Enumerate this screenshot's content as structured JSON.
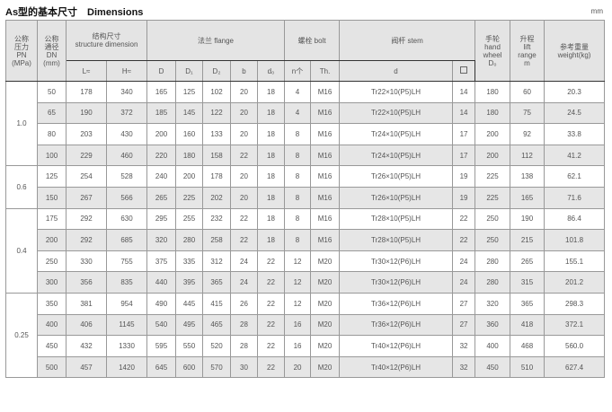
{
  "title": "As型的基本尺寸　Dimensions",
  "unit": "mm",
  "headers": {
    "pn": [
      "公称",
      "压力",
      "PN",
      "(MPa)"
    ],
    "dn": [
      "公称",
      "通径",
      "DN",
      "(mm)"
    ],
    "structure": [
      "结构尺寸",
      "structure dimension"
    ],
    "flange": "法兰 flange",
    "bolt": "螺栓 bolt",
    "stem": "阀杆 stem",
    "handwheel": [
      "手轮",
      "hand",
      "wheel",
      "D₀"
    ],
    "lift": [
      "升程",
      "lift",
      "range",
      "m"
    ],
    "weight": [
      "参考重量",
      "weight(kg)"
    ],
    "sub": {
      "L": "L≈",
      "H": "H≈",
      "D": "D",
      "D1": "D₁",
      "D2": "D₂",
      "b": "b",
      "d0": "d₀",
      "n": "n个",
      "Th": "Th.",
      "d": "d",
      "square": "□"
    }
  },
  "groups": [
    {
      "pn": "1.0",
      "rows": [
        [
          "50",
          "178",
          "340",
          "165",
          "125",
          "102",
          "20",
          "18",
          "4",
          "M16",
          "Tr22×10(P5)LH",
          "14",
          "180",
          "60",
          "20.3"
        ],
        [
          "65",
          "190",
          "372",
          "185",
          "145",
          "122",
          "20",
          "18",
          "4",
          "M16",
          "Tr22×10(P5)LH",
          "14",
          "180",
          "75",
          "24.5"
        ],
        [
          "80",
          "203",
          "430",
          "200",
          "160",
          "133",
          "20",
          "18",
          "8",
          "M16",
          "Tr24×10(P5)LH",
          "17",
          "200",
          "92",
          "33.8"
        ],
        [
          "100",
          "229",
          "460",
          "220",
          "180",
          "158",
          "22",
          "18",
          "8",
          "M16",
          "Tr24×10(P5)LH",
          "17",
          "200",
          "112",
          "41.2"
        ]
      ]
    },
    {
      "pn": "0.6",
      "rows": [
        [
          "125",
          "254",
          "528",
          "240",
          "200",
          "178",
          "20",
          "18",
          "8",
          "M16",
          "Tr26×10(P5)LH",
          "19",
          "225",
          "138",
          "62.1"
        ],
        [
          "150",
          "267",
          "566",
          "265",
          "225",
          "202",
          "20",
          "18",
          "8",
          "M16",
          "Tr26×10(P5)LH",
          "19",
          "225",
          "165",
          "71.6"
        ]
      ]
    },
    {
      "pn": "0.4",
      "rows": [
        [
          "175",
          "292",
          "630",
          "295",
          "255",
          "232",
          "22",
          "18",
          "8",
          "M16",
          "Tr28×10(P5)LH",
          "22",
          "250",
          "190",
          "86.4"
        ],
        [
          "200",
          "292",
          "685",
          "320",
          "280",
          "258",
          "22",
          "18",
          "8",
          "M16",
          "Tr28×10(P5)LH",
          "22",
          "250",
          "215",
          "101.8"
        ],
        [
          "250",
          "330",
          "755",
          "375",
          "335",
          "312",
          "24",
          "22",
          "12",
          "M20",
          "Tr30×12(P6)LH",
          "24",
          "280",
          "265",
          "155.1"
        ],
        [
          "300",
          "356",
          "835",
          "440",
          "395",
          "365",
          "24",
          "22",
          "12",
          "M20",
          "Tr30×12(P6)LH",
          "24",
          "280",
          "315",
          "201.2"
        ]
      ]
    },
    {
      "pn": "0.25",
      "rows": [
        [
          "350",
          "381",
          "954",
          "490",
          "445",
          "415",
          "26",
          "22",
          "12",
          "M20",
          "Tr36×12(P6)LH",
          "27",
          "320",
          "365",
          "298.3"
        ],
        [
          "400",
          "406",
          "1145",
          "540",
          "495",
          "465",
          "28",
          "22",
          "16",
          "M20",
          "Tr36×12(P6)LH",
          "27",
          "360",
          "418",
          "372.1"
        ],
        [
          "450",
          "432",
          "1330",
          "595",
          "550",
          "520",
          "28",
          "22",
          "16",
          "M20",
          "Tr40×12(P6)LH",
          "32",
          "400",
          "468",
          "560.0"
        ],
        [
          "500",
          "457",
          "1420",
          "645",
          "600",
          "570",
          "30",
          "22",
          "20",
          "M20",
          "Tr40×12(P6)LH",
          "32",
          "450",
          "510",
          "627.4"
        ]
      ]
    }
  ]
}
